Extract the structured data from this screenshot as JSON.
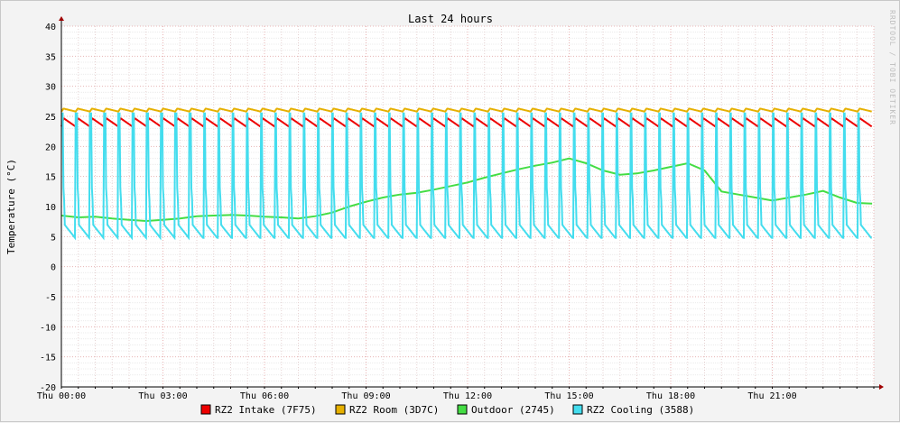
{
  "chart_data": {
    "type": "line",
    "title": "Last 24 hours",
    "ylabel": "Temperature (°C)",
    "watermark": "RRDTOOL / TOBI OETIKER",
    "ylim": [
      -20,
      40
    ],
    "yticks": [
      40,
      35,
      30,
      25,
      20,
      15,
      10,
      5,
      0,
      -5,
      -10,
      -15,
      -20
    ],
    "x_start_hour": 0,
    "x_end_hour": 24,
    "xticks": [
      {
        "hour": 0,
        "label": "Thu 00:00"
      },
      {
        "hour": 3,
        "label": "Thu 03:00"
      },
      {
        "hour": 6,
        "label": "Thu 06:00"
      },
      {
        "hour": 9,
        "label": "Thu 09:00"
      },
      {
        "hour": 12,
        "label": "Thu 12:00"
      },
      {
        "hour": 15,
        "label": "Thu 15:00"
      },
      {
        "hour": 18,
        "label": "Thu 18:00"
      },
      {
        "hour": 21,
        "label": "Thu 21:00"
      }
    ],
    "grid": true,
    "legend_position": "bottom",
    "series": [
      {
        "name": "RZ2 Intake (7F75)",
        "color": "#ee0000",
        "pattern": {
          "kind": "sawtooth",
          "period_h": 0.42,
          "low": 23.3,
          "high": 24.7
        }
      },
      {
        "name": "RZ2 Room (3D7C)",
        "color": "#e6b000",
        "pattern": {
          "kind": "sawtooth",
          "period_h": 0.42,
          "low": 25.8,
          "high": 26.3
        }
      },
      {
        "name": "Outdoor (2745)",
        "color": "#44dd44",
        "x": [
          0,
          0.5,
          1,
          1.5,
          2,
          2.5,
          3,
          3.5,
          4,
          4.5,
          5,
          5.5,
          6,
          6.5,
          7,
          7.5,
          8,
          8.5,
          9,
          9.5,
          10,
          10.5,
          11,
          11.5,
          12,
          12.5,
          13,
          13.5,
          14,
          14.5,
          15,
          15.5,
          16,
          16.5,
          17,
          17.5,
          18,
          18.5,
          19,
          19.5,
          20,
          20.5,
          21,
          21.5,
          22,
          22.5,
          23,
          23.5,
          23.95
        ],
        "values": [
          8.5,
          8.2,
          8.3,
          8.0,
          7.8,
          7.6,
          7.8,
          8.0,
          8.4,
          8.5,
          8.6,
          8.5,
          8.3,
          8.2,
          8.0,
          8.4,
          9.0,
          10.0,
          10.8,
          11.5,
          12.0,
          12.3,
          12.8,
          13.4,
          14.0,
          14.8,
          15.5,
          16.2,
          16.8,
          17.3,
          18.0,
          17.2,
          16.0,
          15.3,
          15.5,
          16.0,
          16.6,
          17.2,
          16.0,
          12.5,
          12.0,
          11.5,
          11.0,
          11.5,
          12.0,
          12.6,
          11.5,
          10.6,
          10.5
        ]
      },
      {
        "name": "RZ2 Cooling (3588)",
        "color": "#44ddee",
        "pattern": {
          "kind": "pulse",
          "period_h": 0.42,
          "low": 4.8,
          "high": 25.5
        },
        "notes_low_phase_hours": [
          12,
          19.5
        ]
      }
    ]
  }
}
